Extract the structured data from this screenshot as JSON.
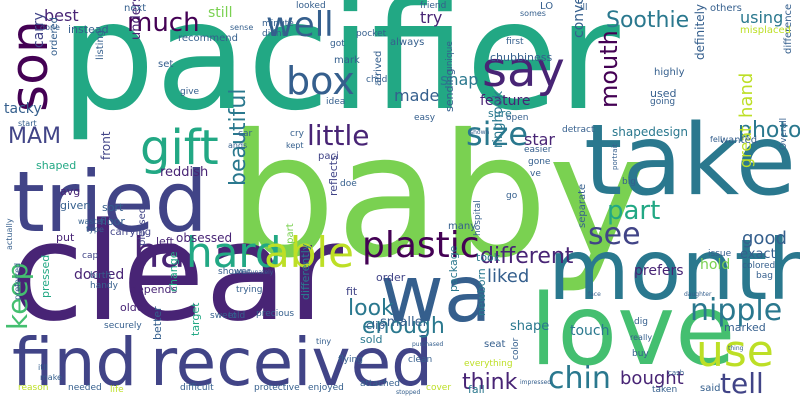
{
  "word_cloud": {
    "palette": [
      "#440154",
      "#482475",
      "#414487",
      "#355f8d",
      "#2a788e",
      "#21918c",
      "#22a884",
      "#44bf70",
      "#7ad151",
      "#bddf26",
      "#fde725"
    ],
    "words": {
      "pacifier": "pacifier",
      "baby": "baby",
      "clear": "clear",
      "take": "take",
      "tried": "tried",
      "month": "month",
      "love": "love",
      "find": "find",
      "received": "received",
      "wa": "wa",
      "son": "son",
      "say": "say",
      "box": "box",
      "gift": "gift",
      "hard": "hard",
      "able": "able",
      "plastic": "plastic",
      "ha": "ha",
      "well": "well",
      "much": "much",
      "use": "use",
      "tell": "tell",
      "chin": "chin",
      "nipple": "nipple",
      "size": "size",
      "see": "see",
      "part": "part",
      "little": "little",
      "keep": "keep",
      "mouth": "mouth",
      "beautiful": "beautiful",
      "different": "different",
      "photo": "photo",
      "good": "good",
      "hand": "hand",
      "great": "great",
      "enough": "enough",
      "look": "look",
      "think": "think",
      "liked": "liked",
      "bought": "bought",
      "Soothie": "Soothie",
      "MAM": "MAM",
      "best": "best",
      "try": "try",
      "using": "using",
      "still": "still",
      "made": "made",
      "snap": "snap",
      "carry": "carry",
      "tacky": "tacky",
      "understand": "understand",
      "feature": "feature",
      "convenient": "convenient",
      "star": "star",
      "shapedesign": "shapedesign",
      "definitely": "definitely",
      "ringhook": "ringhook",
      "docked": "docked",
      "hold": "hold",
      "reddish": "reddish",
      "obsessed": "obsessed",
      "front": "front",
      "shaped": "shaped",
      "floor": "floor",
      "put": "put",
      "left": "left",
      "sort": "sort",
      "avg": "avg",
      "given": "given",
      "older": "older",
      "depends": "depends",
      "touch": "touch",
      "prefers": "prefers",
      "shape": "shape",
      "newborn": "newborn",
      "exact": "exact",
      "smaller": "smaller",
      "package": "package",
      "fit": "fit",
      "order": "order",
      "reflects": "reflects",
      "differently": "differently",
      "clip": "clip",
      "took": "took",
      "sold": "sold",
      "fall": "fall",
      "pressed": "pressed",
      "change": "change",
      "target": "target",
      "better": "better",
      "marked": "marked",
      "used": "used",
      "sending": "sending",
      "sure": "sure",
      "chubbiness": "chubbiness",
      "instead": "instead",
      "next": "next",
      "set": "set",
      "listing": "listing",
      "ordered": "ordered",
      "carrying": "carrying",
      "pleased": "pleased",
      "apart": "apart",
      "many": "many",
      "separate": "separate",
      "always": "always",
      "arrived": "arrived",
      "mark": "mark",
      "paci": "paci",
      "wanted": "wanted",
      "difference": "difference",
      "highly": "highly",
      "others": "others",
      "misplaced": "misplaced",
      "recommend": "recommend",
      "friend": "friend",
      "looked": "looked",
      "minute": "minute",
      "didnt": "didnt",
      "pocket": "pocket",
      "got": "got",
      "idea": "idea",
      "child": "child",
      "unique": "unique",
      "first": "first",
      "open": "open",
      "easy": "easy",
      "detract": "detract",
      "going": "going",
      "cap": "cap",
      "birth": "birth",
      "handy": "handy",
      "shower": "shower",
      "trying": "trying",
      "told": "told",
      "precious": "precious",
      "sweet": "sweet",
      "securely": "securely",
      "difficult": "difficult",
      "protective": "protective",
      "enjoyed": "enjoyed",
      "attached": "attached",
      "needed": "needed",
      "reason": "reason",
      "life": "life",
      "cover": "cover",
      "everything": "everything",
      "seat": "seat",
      "color": "color",
      "said": "said",
      "taken": "taken",
      "buy": "buy",
      "bag": "bag",
      "dig": "dig",
      "Overall": "Overall",
      "colored": "colored",
      "big": "big",
      "issue": "issue",
      "easier": "easier",
      "gone": "gone",
      "cry": "cry",
      "car": "car",
      "ands": "ands",
      "kept": "kept",
      "doe": "doe",
      "wasted": "wasted",
      "type": "type",
      "give": "give",
      "actually": "actually",
      "preferred": "preferred",
      "start": "start",
      "make": "make",
      "itll": "itll",
      "done": "done",
      "sense": "sense",
      "LO": "LO",
      "ill": "ill",
      "somes": "somes",
      "clean": "clean",
      "flying": "flying",
      "tiny": "tiny",
      "really": "really",
      "hospital": "hospital",
      "ve": "ve",
      "go": "go",
      "cash": "cash",
      "portrait": "portrait",
      "Unfortunately": "Unfortunately",
      "face": "face",
      "purchased": "purchased",
      "stopped": "stopped",
      "impressed": "impressed",
      "daughter": "daughter",
      "shown": "shown",
      "tell2": "tell",
      "thing": "thing",
      "fell": "fell"
    }
  }
}
